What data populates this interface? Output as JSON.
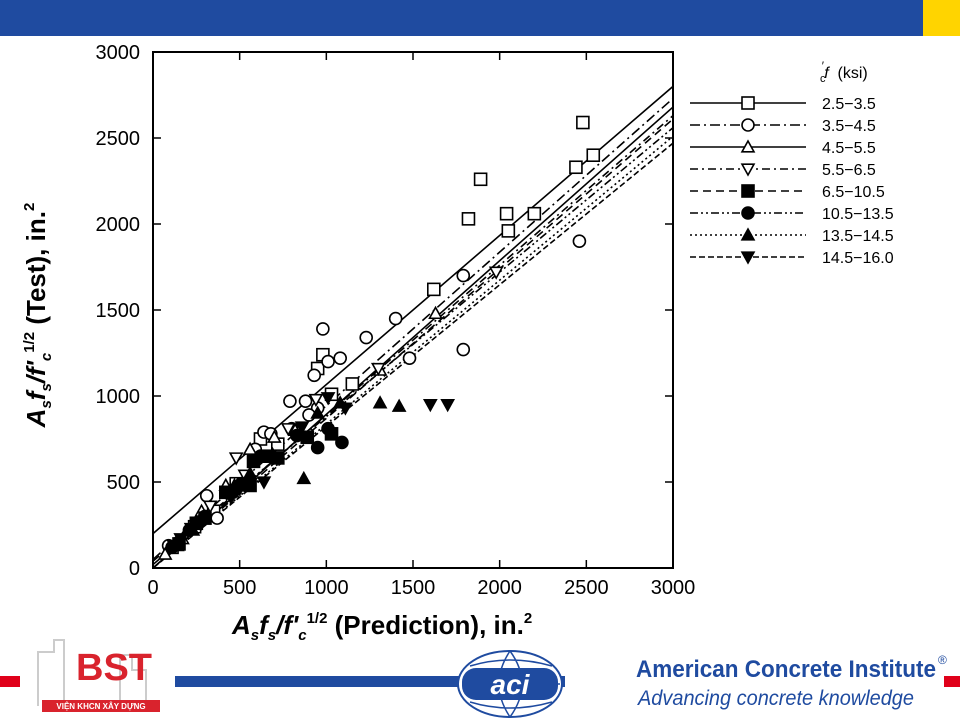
{
  "chart_data": {
    "type": "scatter",
    "xlabel_parts": [
      "A",
      "s",
      "f",
      "s",
      "/f'",
      "c",
      "1/2",
      " (Prediction), in.",
      "2"
    ],
    "ylabel_parts": [
      "A",
      "s",
      "f",
      "s",
      "/f'",
      "c",
      "1/2",
      " (Test), in.",
      "2"
    ],
    "xlim": [
      0,
      3000
    ],
    "ylim": [
      0,
      3000
    ],
    "x_ticks": [
      "0",
      "500",
      "1000",
      "1500",
      "2000",
      "2500",
      "3000"
    ],
    "y_ticks": [
      "0",
      "500",
      "1000",
      "1500",
      "2000",
      "2500",
      "3000"
    ],
    "grid": false,
    "legend_title": "f'c (ksi)",
    "legend_placement": "right, outside plot",
    "series": [
      {
        "name": "2.5−3.5",
        "marker": "square-open",
        "dash": "solid",
        "line": [
          [
            0,
            200
          ],
          [
            3000,
            2800
          ]
        ],
        "points": [
          [
            2480,
            2590
          ],
          [
            2540,
            2400
          ],
          [
            2440,
            2330
          ],
          [
            1890,
            2260
          ],
          [
            2040,
            2060
          ],
          [
            2200,
            2060
          ],
          [
            1820,
            2030
          ],
          [
            2050,
            1960
          ],
          [
            1620,
            1620
          ],
          [
            980,
            1240
          ],
          [
            950,
            1160
          ],
          [
            1150,
            1070
          ],
          [
            1030,
            1010
          ],
          [
            620,
            750
          ],
          [
            720,
            720
          ],
          [
            480,
            490
          ],
          [
            350,
            330
          ],
          [
            240,
            240
          ],
          [
            110,
            120
          ]
        ]
      },
      {
        "name": "3.5−4.5",
        "marker": "circle-open",
        "dash": "longdash-dot",
        "line": [
          [
            0,
            50
          ],
          [
            3000,
            2730
          ]
        ],
        "points": [
          [
            2460,
            1900
          ],
          [
            1790,
            1700
          ],
          [
            1790,
            1270
          ],
          [
            1400,
            1450
          ],
          [
            1230,
            1340
          ],
          [
            980,
            1390
          ],
          [
            1080,
            1220
          ],
          [
            1010,
            1200
          ],
          [
            930,
            1120
          ],
          [
            1480,
            1220
          ],
          [
            790,
            970
          ],
          [
            880,
            970
          ],
          [
            950,
            930
          ],
          [
            900,
            890
          ],
          [
            640,
            790
          ],
          [
            680,
            780
          ],
          [
            800,
            810
          ],
          [
            590,
            690
          ],
          [
            310,
            420
          ],
          [
            370,
            290
          ],
          [
            150,
            150
          ],
          [
            90,
            130
          ]
        ]
      },
      {
        "name": "4.5−5.5",
        "marker": "triangle-open",
        "dash": "solid",
        "line": [
          [
            0,
            0
          ],
          [
            3000,
            2680
          ]
        ],
        "points": [
          [
            1630,
            1480
          ],
          [
            1310,
            1150
          ],
          [
            820,
            800
          ],
          [
            700,
            760
          ],
          [
            560,
            690
          ],
          [
            420,
            480
          ],
          [
            280,
            330
          ],
          [
            170,
            170
          ],
          [
            70,
            80
          ]
        ]
      },
      {
        "name": "5.5−6.5",
        "marker": "triangle-down-open",
        "dash": "dash-dot",
        "line": [
          [
            0,
            20
          ],
          [
            3000,
            2630
          ]
        ],
        "points": [
          [
            1980,
            1720
          ],
          [
            1300,
            1160
          ],
          [
            940,
            980
          ],
          [
            780,
            810
          ],
          [
            480,
            640
          ],
          [
            530,
            540
          ],
          [
            330,
            360
          ],
          [
            220,
            230
          ],
          [
            120,
            130
          ]
        ]
      },
      {
        "name": "6.5−10.5",
        "marker": "square-filled",
        "dash": "dash",
        "line": [
          [
            0,
            0
          ],
          [
            3000,
            2610
          ]
        ],
        "points": [
          [
            1030,
            780
          ],
          [
            890,
            760
          ],
          [
            650,
            650
          ],
          [
            720,
            640
          ],
          [
            580,
            620
          ],
          [
            420,
            440
          ],
          [
            560,
            480
          ],
          [
            300,
            290
          ],
          [
            250,
            260
          ],
          [
            150,
            140
          ]
        ]
      },
      {
        "name": "10.5−13.5",
        "marker": "circle-filled",
        "dash": "dash-dot-dot",
        "line": [
          [
            0,
            40
          ],
          [
            3000,
            2560
          ]
        ],
        "points": [
          [
            1010,
            810
          ],
          [
            1090,
            730
          ],
          [
            950,
            700
          ],
          [
            830,
            770
          ],
          [
            620,
            650
          ],
          [
            510,
            490
          ],
          [
            460,
            440
          ],
          [
            300,
            300
          ],
          [
            210,
            220
          ],
          [
            110,
            120
          ]
        ]
      },
      {
        "name": "13.5−14.5",
        "marker": "triangle-filled",
        "dash": "dotted",
        "line": [
          [
            0,
            0
          ],
          [
            3000,
            2510
          ]
        ],
        "points": [
          [
            1310,
            960
          ],
          [
            1420,
            940
          ],
          [
            870,
            520
          ],
          [
            1080,
            960
          ],
          [
            950,
            900
          ],
          [
            690,
            660
          ],
          [
            560,
            550
          ],
          [
            470,
            480
          ],
          [
            230,
            220
          ],
          [
            140,
            130
          ]
        ]
      },
      {
        "name": "14.5−16.0",
        "marker": "triangle-down-filled",
        "dash": "longdash",
        "line": [
          [
            0,
            0
          ],
          [
            3000,
            2470
          ]
        ],
        "points": [
          [
            1700,
            950
          ],
          [
            1600,
            950
          ],
          [
            1110,
            930
          ],
          [
            1010,
            990
          ],
          [
            860,
            820
          ],
          [
            640,
            500
          ],
          [
            500,
            460
          ],
          [
            450,
            410
          ],
          [
            280,
            260
          ],
          [
            160,
            170
          ]
        ]
      }
    ]
  },
  "branding": {
    "left_logo_caption": "VIỆN KHCN XÂY DỰNG",
    "aci_mark": "aci",
    "org_name": "American Concrete Institute",
    "registered": "®",
    "tagline": "Advancing concrete knowledge",
    "colors": {
      "brand_blue": "#1f4ba0",
      "accent_yellow": "#ffd400",
      "accent_red": "#e0001a",
      "logo_red": "#d9232d"
    }
  }
}
